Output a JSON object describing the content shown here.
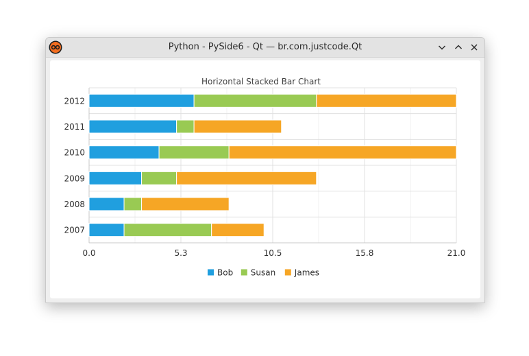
{
  "window": {
    "title": "Python - PySide6 - Qt — br.com.justcode.Qt",
    "controls": {
      "minimize": "minimize",
      "maximize": "maximize",
      "close": "close"
    }
  },
  "colors": {
    "bob": "#209fdf",
    "susan": "#99ca53",
    "james": "#f6a625"
  },
  "chart_data": {
    "type": "bar",
    "orientation": "horizontal",
    "stacked": true,
    "title": "Horizontal Stacked Bar Chart",
    "xlabel": "",
    "ylabel": "",
    "categories": [
      "2007",
      "2008",
      "2009",
      "2010",
      "2011",
      "2012"
    ],
    "series": [
      {
        "name": "Bob",
        "color": "#209fdf",
        "values": [
          2,
          2,
          3,
          4,
          5,
          6
        ]
      },
      {
        "name": "Susan",
        "color": "#99ca53",
        "values": [
          5,
          1,
          2,
          4,
          1,
          7
        ]
      },
      {
        "name": "James",
        "color": "#f6a625",
        "values": [
          3,
          5,
          8,
          13,
          5,
          8
        ]
      }
    ],
    "xlim": [
      0,
      21
    ],
    "x_ticks": [
      "0.0",
      "5.3",
      "10.5",
      "15.8",
      "21.0"
    ],
    "grid": true,
    "legend_position": "bottom"
  }
}
